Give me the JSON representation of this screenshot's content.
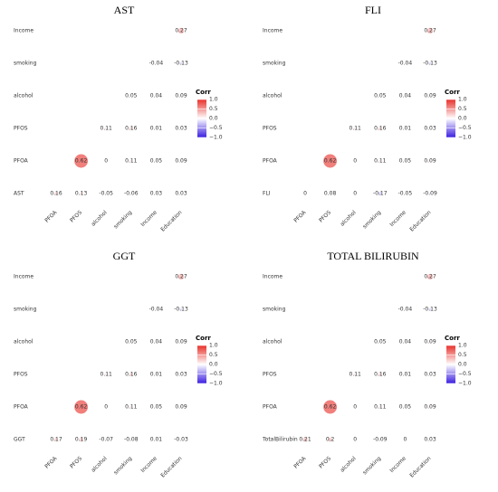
{
  "chart_data": [
    {
      "type": "corrplot",
      "title": "AST",
      "x": [
        "PFOA",
        "PFOS",
        "alcohol",
        "smoking",
        "Income",
        "Education"
      ],
      "y": [
        "Income",
        "smoking",
        "alcohol",
        "PFOS",
        "PFOA",
        "AST"
      ],
      "values": [
        [
          null,
          null,
          null,
          null,
          null,
          0.27
        ],
        [
          null,
          null,
          null,
          null,
          -0.04,
          -0.13
        ],
        [
          null,
          null,
          null,
          0.05,
          0.04,
          0.09
        ],
        [
          null,
          null,
          0.11,
          0.16,
          0.01,
          0.03
        ],
        [
          null,
          0.62,
          0,
          0.11,
          0.05,
          0.09
        ],
        [
          0.16,
          0.13,
          -0.05,
          -0.06,
          0.03,
          0.03
        ]
      ],
      "legend_title": "Corr",
      "clim": [
        -1,
        1
      ],
      "cticks": [
        {
          "value": 1,
          "label": "1.0"
        },
        {
          "value": 0.5,
          "label": "0.5"
        },
        {
          "value": 0,
          "label": "0.0"
        },
        {
          "value": -0.5,
          "label": "−0.5"
        },
        {
          "value": -1,
          "label": "−1.0"
        }
      ]
    },
    {
      "type": "corrplot",
      "title": "FLI",
      "x": [
        "PFOA",
        "PFOS",
        "alcohol",
        "smoking",
        "Income",
        "Education"
      ],
      "y": [
        "Income",
        "smoking",
        "alcohol",
        "PFOS",
        "PFOA",
        "FLI"
      ],
      "values": [
        [
          null,
          null,
          null,
          null,
          null,
          0.27
        ],
        [
          null,
          null,
          null,
          null,
          -0.04,
          -0.13
        ],
        [
          null,
          null,
          null,
          0.05,
          0.04,
          0.09
        ],
        [
          null,
          null,
          0.11,
          0.16,
          0.01,
          0.03
        ],
        [
          null,
          0.62,
          0,
          0.11,
          0.05,
          0.09
        ],
        [
          0,
          0.08,
          0,
          -0.17,
          -0.05,
          -0.09
        ]
      ],
      "legend_title": "Corr",
      "clim": [
        -1,
        1
      ],
      "cticks": [
        {
          "value": 1,
          "label": "1.0"
        },
        {
          "value": 0.5,
          "label": "0.5"
        },
        {
          "value": 0,
          "label": "0.0"
        },
        {
          "value": -0.5,
          "label": "−0.5"
        },
        {
          "value": -1,
          "label": "−1.0"
        }
      ]
    },
    {
      "type": "corrplot",
      "title": "GGT",
      "x": [
        "PFOA",
        "PFOS",
        "alcohol",
        "smoking",
        "Income",
        "Education"
      ],
      "y": [
        "Income",
        "smoking",
        "alcohol",
        "PFOS",
        "PFOA",
        "GGT"
      ],
      "values": [
        [
          null,
          null,
          null,
          null,
          null,
          0.27
        ],
        [
          null,
          null,
          null,
          null,
          -0.04,
          -0.13
        ],
        [
          null,
          null,
          null,
          0.05,
          0.04,
          0.09
        ],
        [
          null,
          null,
          0.11,
          0.16,
          0.01,
          0.03
        ],
        [
          null,
          0.62,
          0,
          0.11,
          0.05,
          0.09
        ],
        [
          0.17,
          0.19,
          -0.07,
          -0.08,
          0.01,
          -0.03
        ]
      ],
      "legend_title": "Corr",
      "clim": [
        -1,
        1
      ],
      "cticks": [
        {
          "value": 1,
          "label": "1.0"
        },
        {
          "value": 0.5,
          "label": "0.5"
        },
        {
          "value": 0,
          "label": "0.0"
        },
        {
          "value": -0.5,
          "label": "−0.5"
        },
        {
          "value": -1,
          "label": "−1.0"
        }
      ]
    },
    {
      "type": "corrplot",
      "title": "TOTAL BILIRUBIN",
      "x": [
        "PFOA",
        "PFOS",
        "alcohol",
        "smoking",
        "Income",
        "Education"
      ],
      "y": [
        "Income",
        "smoking",
        "alcohol",
        "PFOS",
        "PFOA",
        "TotalBilirubin"
      ],
      "values": [
        [
          null,
          null,
          null,
          null,
          null,
          0.27
        ],
        [
          null,
          null,
          null,
          null,
          -0.04,
          -0.13
        ],
        [
          null,
          null,
          null,
          0.05,
          0.04,
          0.09
        ],
        [
          null,
          null,
          0.11,
          0.16,
          0.01,
          0.03
        ],
        [
          null,
          0.62,
          0,
          0.11,
          0.05,
          0.09
        ],
        [
          0.21,
          0.2,
          0,
          -0.09,
          0,
          0.03
        ]
      ],
      "legend_title": "Corr",
      "clim": [
        -1,
        1
      ],
      "cticks": [
        {
          "value": 1,
          "label": "1.0"
        },
        {
          "value": 0.5,
          "label": "0.5"
        },
        {
          "value": 0,
          "label": "0.0"
        },
        {
          "value": -0.5,
          "label": "−0.5"
        },
        {
          "value": -1,
          "label": "−1.0"
        }
      ]
    }
  ]
}
